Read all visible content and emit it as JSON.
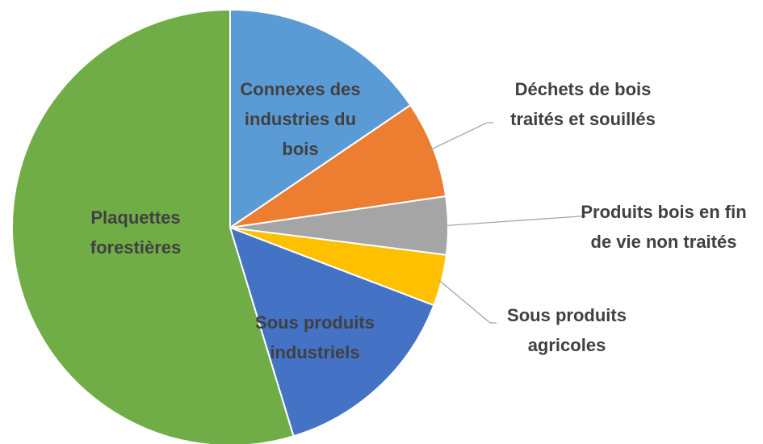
{
  "chart_data": {
    "type": "pie",
    "categories": [
      "Connexes des industries du bois",
      "Déchets de bois traités et souillés",
      "Produits bois en fin de vie non traités",
      "Sous produits agricoles",
      "Sous produits industriels",
      "Plaquettes forestières"
    ],
    "values": [
      15.5,
      7.2,
      4.3,
      3.8,
      14.5,
      54.7
    ],
    "colors": [
      "#5b9bd5",
      "#ed7d31",
      "#a5a5a5",
      "#ffc000",
      "#4472c4",
      "#70ad47"
    ]
  }
}
